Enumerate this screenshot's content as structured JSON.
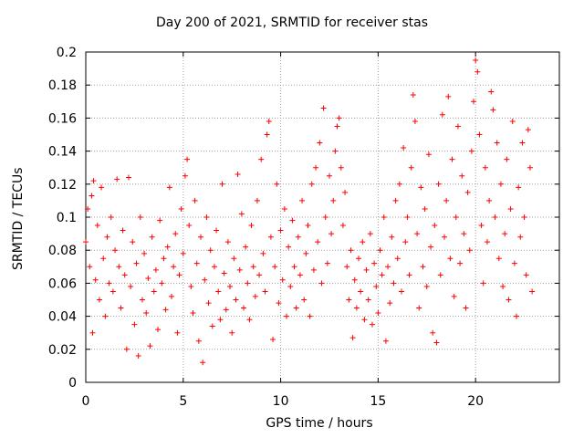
{
  "chart_data": {
    "type": "scatter",
    "title": "Day 200 of 2021, SRMTID for receiver stas",
    "xlabel": "GPS time / hours",
    "ylabel": "SRMTID / TECUs",
    "xlim": [
      0,
      24.3
    ],
    "ylim": [
      0,
      0.2
    ],
    "xticks": [
      0,
      5,
      10,
      15,
      20
    ],
    "xtick_labels": [
      "0",
      "5",
      "10",
      "15",
      "20"
    ],
    "yticks": [
      0,
      0.02,
      0.04,
      0.06,
      0.08,
      0.1,
      0.12,
      0.14,
      0.16,
      0.18,
      0.2
    ],
    "ytick_labels": [
      "0",
      "0.02",
      "0.04",
      "0.06",
      "0.08",
      "0.1",
      "0.12",
      "0.14",
      "0.16",
      "0.18",
      "0.2"
    ],
    "grid": true,
    "marker": "+",
    "color": "#ff0000",
    "series": [
      {
        "name": "SRMTID",
        "points": [
          [
            0.0,
            0.085
          ],
          [
            0.1,
            0.105
          ],
          [
            0.2,
            0.07
          ],
          [
            0.3,
            0.113
          ],
          [
            0.35,
            0.03
          ],
          [
            0.4,
            0.122
          ],
          [
            0.5,
            0.062
          ],
          [
            0.6,
            0.095
          ],
          [
            0.7,
            0.05
          ],
          [
            0.8,
            0.118
          ],
          [
            0.9,
            0.075
          ],
          [
            1.0,
            0.04
          ],
          [
            1.1,
            0.088
          ],
          [
            1.2,
            0.06
          ],
          [
            1.3,
            0.1
          ],
          [
            1.4,
            0.055
          ],
          [
            1.5,
            0.08
          ],
          [
            1.6,
            0.123
          ],
          [
            1.7,
            0.07
          ],
          [
            1.8,
            0.045
          ],
          [
            1.9,
            0.092
          ],
          [
            2.0,
            0.065
          ],
          [
            2.1,
            0.02
          ],
          [
            2.2,
            0.124
          ],
          [
            2.3,
            0.058
          ],
          [
            2.4,
            0.085
          ],
          [
            2.5,
            0.035
          ],
          [
            2.6,
            0.072
          ],
          [
            2.7,
            0.016
          ],
          [
            2.8,
            0.1
          ],
          [
            2.9,
            0.05
          ],
          [
            3.0,
            0.078
          ],
          [
            3.1,
            0.042
          ],
          [
            3.2,
            0.063
          ],
          [
            3.3,
            0.022
          ],
          [
            3.4,
            0.088
          ],
          [
            3.5,
            0.055
          ],
          [
            3.6,
            0.068
          ],
          [
            3.7,
            0.032
          ],
          [
            3.8,
            0.098
          ],
          [
            3.9,
            0.06
          ],
          [
            4.0,
            0.075
          ],
          [
            4.1,
            0.044
          ],
          [
            4.2,
            0.082
          ],
          [
            4.3,
            0.118
          ],
          [
            4.4,
            0.052
          ],
          [
            4.5,
            0.07
          ],
          [
            4.6,
            0.09
          ],
          [
            4.7,
            0.03
          ],
          [
            4.8,
            0.065
          ],
          [
            4.9,
            0.105
          ],
          [
            5.0,
            0.078
          ],
          [
            5.1,
            0.125
          ],
          [
            5.2,
            0.135
          ],
          [
            5.3,
            0.095
          ],
          [
            5.4,
            0.058
          ],
          [
            5.5,
            0.042
          ],
          [
            5.6,
            0.11
          ],
          [
            5.7,
            0.072
          ],
          [
            5.8,
            0.025
          ],
          [
            5.9,
            0.088
          ],
          [
            6.0,
            0.012
          ],
          [
            6.1,
            0.062
          ],
          [
            6.2,
            0.1
          ],
          [
            6.3,
            0.048
          ],
          [
            6.4,
            0.08
          ],
          [
            6.5,
            0.034
          ],
          [
            6.6,
            0.07
          ],
          [
            6.7,
            0.092
          ],
          [
            6.8,
            0.055
          ],
          [
            6.9,
            0.038
          ],
          [
            7.0,
            0.12
          ],
          [
            7.1,
            0.066
          ],
          [
            7.2,
            0.044
          ],
          [
            7.3,
            0.085
          ],
          [
            7.4,
            0.058
          ],
          [
            7.5,
            0.03
          ],
          [
            7.6,
            0.075
          ],
          [
            7.7,
            0.05
          ],
          [
            7.8,
            0.126
          ],
          [
            7.9,
            0.068
          ],
          [
            8.0,
            0.102
          ],
          [
            8.1,
            0.045
          ],
          [
            8.2,
            0.082
          ],
          [
            8.3,
            0.06
          ],
          [
            8.4,
            0.038
          ],
          [
            8.5,
            0.095
          ],
          [
            8.6,
            0.07
          ],
          [
            8.7,
            0.052
          ],
          [
            8.8,
            0.11
          ],
          [
            8.9,
            0.065
          ],
          [
            9.0,
            0.135
          ],
          [
            9.1,
            0.078
          ],
          [
            9.2,
            0.055
          ],
          [
            9.3,
            0.15
          ],
          [
            9.4,
            0.158
          ],
          [
            9.5,
            0.088
          ],
          [
            9.6,
            0.026
          ],
          [
            9.7,
            0.07
          ],
          [
            9.8,
            0.12
          ],
          [
            9.9,
            0.048
          ],
          [
            10.0,
            0.092
          ],
          [
            10.1,
            0.062
          ],
          [
            10.2,
            0.105
          ],
          [
            10.3,
            0.04
          ],
          [
            10.4,
            0.082
          ],
          [
            10.5,
            0.058
          ],
          [
            10.6,
            0.098
          ],
          [
            10.7,
            0.07
          ],
          [
            10.8,
            0.045
          ],
          [
            10.9,
            0.088
          ],
          [
            11.0,
            0.065
          ],
          [
            11.1,
            0.11
          ],
          [
            11.2,
            0.05
          ],
          [
            11.3,
            0.078
          ],
          [
            11.4,
            0.095
          ],
          [
            11.5,
            0.04
          ],
          [
            11.6,
            0.12
          ],
          [
            11.7,
            0.068
          ],
          [
            11.8,
            0.13
          ],
          [
            11.9,
            0.085
          ],
          [
            12.0,
            0.145
          ],
          [
            12.1,
            0.06
          ],
          [
            12.2,
            0.166
          ],
          [
            12.3,
            0.1
          ],
          [
            12.4,
            0.072
          ],
          [
            12.5,
            0.125
          ],
          [
            12.6,
            0.09
          ],
          [
            12.7,
            0.11
          ],
          [
            12.8,
            0.14
          ],
          [
            12.9,
            0.155
          ],
          [
            13.0,
            0.16
          ],
          [
            13.1,
            0.13
          ],
          [
            13.2,
            0.095
          ],
          [
            13.3,
            0.115
          ],
          [
            13.4,
            0.07
          ],
          [
            13.5,
            0.05
          ],
          [
            13.6,
            0.08
          ],
          [
            13.7,
            0.027
          ],
          [
            13.8,
            0.062
          ],
          [
            13.9,
            0.045
          ],
          [
            14.0,
            0.075
          ],
          [
            14.1,
            0.055
          ],
          [
            14.2,
            0.085
          ],
          [
            14.3,
            0.038
          ],
          [
            14.4,
            0.068
          ],
          [
            14.5,
            0.05
          ],
          [
            14.6,
            0.09
          ],
          [
            14.7,
            0.035
          ],
          [
            14.8,
            0.072
          ],
          [
            14.9,
            0.058
          ],
          [
            15.0,
            0.042
          ],
          [
            15.1,
            0.08
          ],
          [
            15.2,
            0.065
          ],
          [
            15.3,
            0.1
          ],
          [
            15.4,
            0.025
          ],
          [
            15.5,
            0.07
          ],
          [
            15.6,
            0.048
          ],
          [
            15.7,
            0.088
          ],
          [
            15.8,
            0.06
          ],
          [
            15.9,
            0.11
          ],
          [
            16.0,
            0.075
          ],
          [
            16.1,
            0.12
          ],
          [
            16.2,
            0.055
          ],
          [
            16.3,
            0.142
          ],
          [
            16.4,
            0.085
          ],
          [
            16.5,
            0.1
          ],
          [
            16.6,
            0.065
          ],
          [
            16.7,
            0.13
          ],
          [
            16.8,
            0.174
          ],
          [
            16.9,
            0.158
          ],
          [
            17.0,
            0.09
          ],
          [
            17.1,
            0.045
          ],
          [
            17.2,
            0.118
          ],
          [
            17.3,
            0.07
          ],
          [
            17.4,
            0.105
          ],
          [
            17.5,
            0.058
          ],
          [
            17.6,
            0.138
          ],
          [
            17.7,
            0.082
          ],
          [
            17.8,
            0.03
          ],
          [
            17.9,
            0.095
          ],
          [
            18.0,
            0.024
          ],
          [
            18.1,
            0.12
          ],
          [
            18.2,
            0.065
          ],
          [
            18.3,
            0.162
          ],
          [
            18.4,
            0.088
          ],
          [
            18.5,
            0.11
          ],
          [
            18.6,
            0.173
          ],
          [
            18.7,
            0.075
          ],
          [
            18.8,
            0.135
          ],
          [
            18.9,
            0.052
          ],
          [
            19.0,
            0.1
          ],
          [
            19.1,
            0.155
          ],
          [
            19.2,
            0.072
          ],
          [
            19.3,
            0.125
          ],
          [
            19.4,
            0.09
          ],
          [
            19.5,
            0.045
          ],
          [
            19.6,
            0.115
          ],
          [
            19.7,
            0.08
          ],
          [
            19.8,
            0.14
          ],
          [
            19.9,
            0.17
          ],
          [
            20.0,
            0.195
          ],
          [
            20.1,
            0.188
          ],
          [
            20.2,
            0.15
          ],
          [
            20.3,
            0.095
          ],
          [
            20.4,
            0.06
          ],
          [
            20.5,
            0.13
          ],
          [
            20.6,
            0.085
          ],
          [
            20.7,
            0.11
          ],
          [
            20.8,
            0.176
          ],
          [
            20.9,
            0.165
          ],
          [
            21.0,
            0.1
          ],
          [
            21.1,
            0.145
          ],
          [
            21.2,
            0.075
          ],
          [
            21.3,
            0.12
          ],
          [
            21.4,
            0.058
          ],
          [
            21.5,
            0.09
          ],
          [
            21.6,
            0.135
          ],
          [
            21.7,
            0.05
          ],
          [
            21.8,
            0.105
          ],
          [
            21.9,
            0.158
          ],
          [
            22.0,
            0.072
          ],
          [
            22.1,
            0.04
          ],
          [
            22.2,
            0.118
          ],
          [
            22.3,
            0.088
          ],
          [
            22.4,
            0.145
          ],
          [
            22.5,
            0.1
          ],
          [
            22.6,
            0.065
          ],
          [
            22.7,
            0.153
          ],
          [
            22.8,
            0.13
          ],
          [
            22.9,
            0.055
          ]
        ]
      }
    ]
  }
}
